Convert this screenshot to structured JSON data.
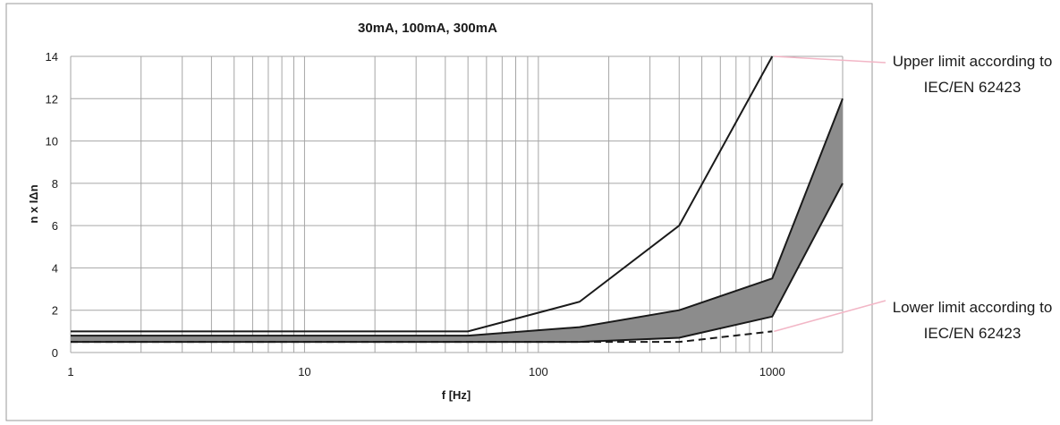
{
  "chart_data": {
    "type": "line",
    "title": "30mA, 100mA, 300mA",
    "xlabel": "f [Hz]",
    "ylabel": "n x IΔn",
    "xscale": "log",
    "xlim": [
      1,
      2000
    ],
    "ylim": [
      0,
      14
    ],
    "xticks": [
      1,
      10,
      100,
      1000
    ],
    "xtick_labels": [
      "1",
      "10",
      "100",
      "1000"
    ],
    "yticks": [
      0,
      2,
      4,
      6,
      8,
      10,
      12,
      14
    ],
    "ytick_labels": [
      "0",
      "2",
      "4",
      "6",
      "8",
      "10",
      "12",
      "14"
    ],
    "grid": true,
    "band": {
      "color": "#8c8c8c",
      "upper": {
        "x": [
          1,
          50,
          150,
          400,
          1000,
          2000
        ],
        "y": [
          0.8,
          0.8,
          1.2,
          2.0,
          3.5,
          12
        ]
      },
      "lower": {
        "x": [
          1,
          50,
          150,
          400,
          1000,
          2000
        ],
        "y": [
          0.5,
          0.5,
          0.5,
          0.7,
          1.7,
          8
        ]
      }
    },
    "series": [
      {
        "x": [
          1,
          50,
          150,
          400,
          1000
        ],
        "y": [
          1,
          1,
          2.4,
          6,
          14
        ],
        "style": "solid",
        "color": "#1a1a1a"
      },
      {
        "x": [
          1,
          50,
          150,
          400,
          1000
        ],
        "y": [
          0.5,
          0.5,
          0.5,
          0.5,
          1.0
        ],
        "style": "dashed",
        "color": "#1a1a1a"
      }
    ],
    "annotations": [
      {
        "lines": [
          "Upper limit according to",
          "IEC/EN 62423"
        ],
        "x": 1000,
        "y": 14,
        "leader_color": "#f2b6c6"
      },
      {
        "lines": [
          "Lower limit according to",
          "IEC/EN 62423"
        ],
        "x": 1000,
        "y": 1.0,
        "leader_color": "#f2b6c6"
      }
    ]
  }
}
